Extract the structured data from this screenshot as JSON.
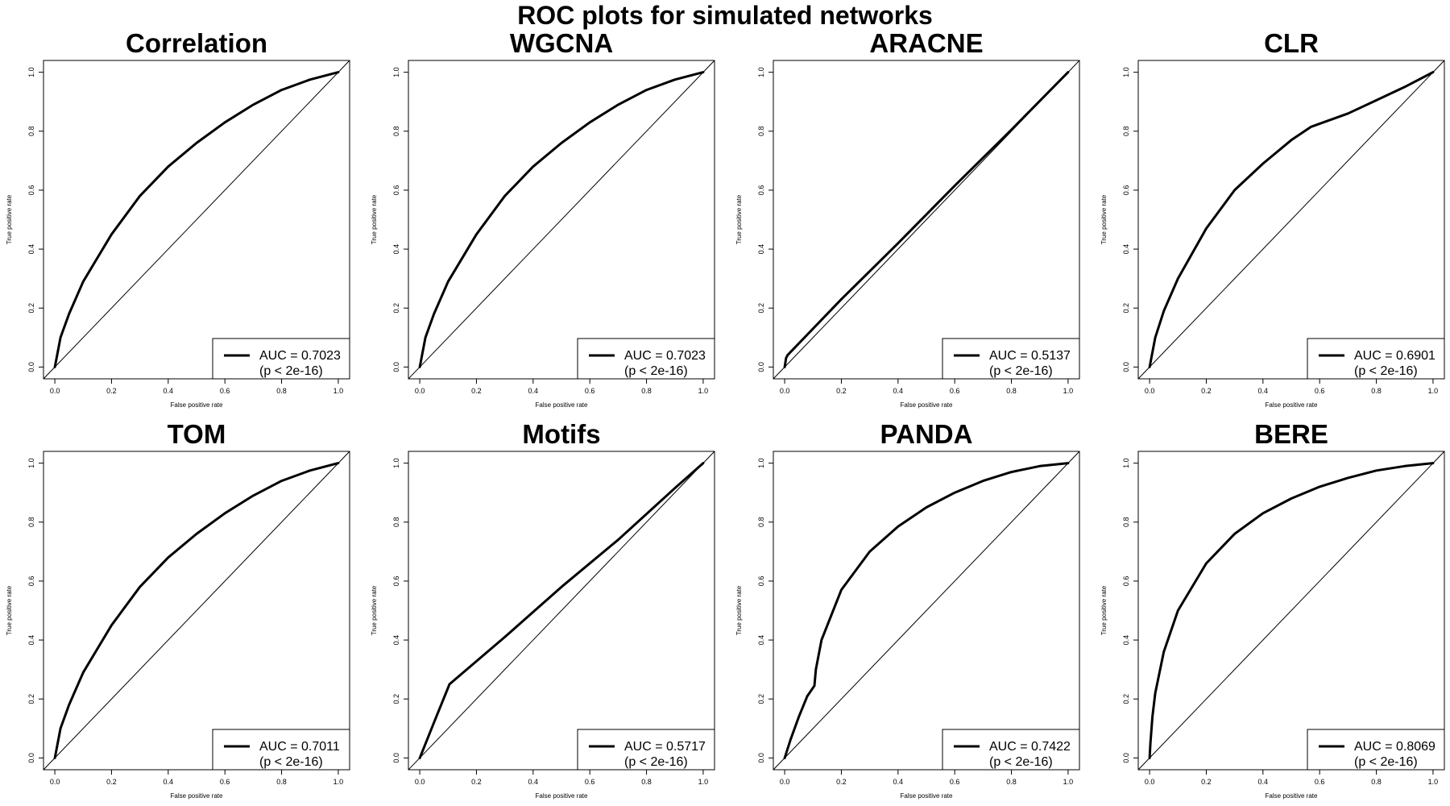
{
  "figure": {
    "title": "ROC plots for simulated networks"
  },
  "chart_data": [
    {
      "type": "line",
      "title": "Correlation",
      "xlabel": "False positive rate",
      "ylabel": "True positive rate",
      "xlim": [
        0,
        1
      ],
      "ylim": [
        0,
        1
      ],
      "xticks": [
        "0.0",
        "0.2",
        "0.4",
        "0.6",
        "0.8",
        "1.0"
      ],
      "yticks": [
        "0.0",
        "0.2",
        "0.4",
        "0.6",
        "0.8",
        "1.0"
      ],
      "grid": false,
      "legend_position": "bottom-right",
      "legend": [
        "AUC = 0.7023",
        "(p < 2e-16)"
      ],
      "auc": 0.7023,
      "x": [
        0,
        0.02,
        0.05,
        0.1,
        0.2,
        0.3,
        0.4,
        0.5,
        0.6,
        0.7,
        0.8,
        0.9,
        1.0
      ],
      "y": [
        0,
        0.1,
        0.18,
        0.29,
        0.45,
        0.58,
        0.68,
        0.76,
        0.83,
        0.89,
        0.94,
        0.975,
        1.0
      ]
    },
    {
      "type": "line",
      "title": "WGCNA",
      "xlabel": "False positive rate",
      "ylabel": "True positive rate",
      "xlim": [
        0,
        1
      ],
      "ylim": [
        0,
        1
      ],
      "xticks": [
        "0.0",
        "0.2",
        "0.4",
        "0.6",
        "0.8",
        "1.0"
      ],
      "yticks": [
        "0.0",
        "0.2",
        "0.4",
        "0.6",
        "0.8",
        "1.0"
      ],
      "grid": false,
      "legend_position": "bottom-right",
      "legend": [
        "AUC = 0.7023",
        "(p < 2e-16)"
      ],
      "auc": 0.7023,
      "x": [
        0,
        0.02,
        0.05,
        0.1,
        0.2,
        0.3,
        0.4,
        0.5,
        0.6,
        0.7,
        0.8,
        0.9,
        1.0
      ],
      "y": [
        0,
        0.1,
        0.18,
        0.29,
        0.45,
        0.58,
        0.68,
        0.76,
        0.83,
        0.89,
        0.94,
        0.975,
        1.0
      ]
    },
    {
      "type": "line",
      "title": "ARACNE",
      "xlabel": "False positive rate",
      "ylabel": "True positive rate",
      "xlim": [
        0,
        1
      ],
      "ylim": [
        0,
        1
      ],
      "xticks": [
        "0.0",
        "0.2",
        "0.4",
        "0.6",
        "0.8",
        "1.0"
      ],
      "yticks": [
        "0.0",
        "0.2",
        "0.4",
        "0.6",
        "0.8",
        "1.0"
      ],
      "grid": false,
      "legend_position": "bottom-right",
      "legend": [
        "AUC = 0.5137",
        "(p < 2e-16)"
      ],
      "auc": 0.5137,
      "x": [
        0,
        0.005,
        0.01,
        0.2,
        0.4,
        0.6,
        0.8,
        1.0
      ],
      "y": [
        0,
        0.03,
        0.04,
        0.23,
        0.42,
        0.615,
        0.805,
        1.0
      ]
    },
    {
      "type": "line",
      "title": "CLR",
      "xlabel": "False positive rate",
      "ylabel": "True positive rate",
      "xlim": [
        0,
        1
      ],
      "ylim": [
        0,
        1
      ],
      "xticks": [
        "0.0",
        "0.2",
        "0.4",
        "0.6",
        "0.8",
        "1.0"
      ],
      "yticks": [
        "0.0",
        "0.2",
        "0.4",
        "0.6",
        "0.8",
        "1.0"
      ],
      "grid": false,
      "legend_position": "bottom-right",
      "legend": [
        "AUC = 0.6901",
        "(p < 2e-16)"
      ],
      "auc": 0.6901,
      "x": [
        0,
        0.02,
        0.05,
        0.1,
        0.2,
        0.3,
        0.4,
        0.5,
        0.57,
        0.7,
        0.8,
        0.9,
        1.0
      ],
      "y": [
        0,
        0.1,
        0.19,
        0.3,
        0.47,
        0.6,
        0.69,
        0.77,
        0.815,
        0.86,
        0.905,
        0.95,
        1.0
      ]
    },
    {
      "type": "line",
      "title": "TOM",
      "xlabel": "False positive rate",
      "ylabel": "True positive rate",
      "xlim": [
        0,
        1
      ],
      "ylim": [
        0,
        1
      ],
      "xticks": [
        "0.0",
        "0.2",
        "0.4",
        "0.6",
        "0.8",
        "1.0"
      ],
      "yticks": [
        "0.0",
        "0.2",
        "0.4",
        "0.6",
        "0.8",
        "1.0"
      ],
      "grid": false,
      "legend_position": "bottom-right",
      "legend": [
        "AUC = 0.7011",
        "(p < 2e-16)"
      ],
      "auc": 0.7011,
      "x": [
        0,
        0.02,
        0.05,
        0.1,
        0.2,
        0.3,
        0.4,
        0.5,
        0.6,
        0.7,
        0.8,
        0.9,
        1.0
      ],
      "y": [
        0,
        0.1,
        0.18,
        0.29,
        0.45,
        0.58,
        0.68,
        0.76,
        0.83,
        0.89,
        0.94,
        0.975,
        1.0
      ]
    },
    {
      "type": "line",
      "title": "Motifs",
      "xlabel": "False positive rate",
      "ylabel": "True positive rate",
      "xlim": [
        0,
        1
      ],
      "ylim": [
        0,
        1
      ],
      "xticks": [
        "0.0",
        "0.2",
        "0.4",
        "0.6",
        "0.8",
        "1.0"
      ],
      "yticks": [
        "0.0",
        "0.2",
        "0.4",
        "0.6",
        "0.8",
        "1.0"
      ],
      "grid": false,
      "legend_position": "bottom-right",
      "legend": [
        "AUC = 0.5717",
        "(p < 2e-16)"
      ],
      "auc": 0.5717,
      "x": [
        0,
        0.05,
        0.105,
        0.3,
        0.5,
        0.7,
        0.9,
        1.0
      ],
      "y": [
        0,
        0.12,
        0.25,
        0.41,
        0.58,
        0.74,
        0.915,
        1.0
      ]
    },
    {
      "type": "line",
      "title": "PANDA",
      "xlabel": "False positive rate",
      "ylabel": "True positive rate",
      "xlim": [
        0,
        1
      ],
      "ylim": [
        0,
        1
      ],
      "xticks": [
        "0.0",
        "0.2",
        "0.4",
        "0.6",
        "0.8",
        "1.0"
      ],
      "yticks": [
        "0.0",
        "0.2",
        "0.4",
        "0.6",
        "0.8",
        "1.0"
      ],
      "grid": false,
      "legend_position": "bottom-right",
      "legend": [
        "AUC = 0.7422",
        "(p < 2e-16)"
      ],
      "auc": 0.7422,
      "x": [
        0,
        0.02,
        0.05,
        0.08,
        0.105,
        0.11,
        0.13,
        0.2,
        0.3,
        0.4,
        0.5,
        0.6,
        0.7,
        0.8,
        0.9,
        1.0
      ],
      "y": [
        0,
        0.06,
        0.14,
        0.21,
        0.245,
        0.3,
        0.4,
        0.57,
        0.7,
        0.785,
        0.85,
        0.9,
        0.94,
        0.97,
        0.99,
        1.0
      ]
    },
    {
      "type": "line",
      "title": "BERE",
      "xlabel": "False positive rate",
      "ylabel": "True positive rate",
      "xlim": [
        0,
        1
      ],
      "ylim": [
        0,
        1
      ],
      "xticks": [
        "0.0",
        "0.2",
        "0.4",
        "0.6",
        "0.8",
        "1.0"
      ],
      "yticks": [
        "0.0",
        "0.2",
        "0.4",
        "0.6",
        "0.8",
        "1.0"
      ],
      "grid": false,
      "legend_position": "bottom-right",
      "legend": [
        "AUC = 0.8069",
        "(p < 2e-16)"
      ],
      "auc": 0.8069,
      "x": [
        0,
        0.003,
        0.01,
        0.02,
        0.05,
        0.1,
        0.2,
        0.3,
        0.4,
        0.5,
        0.6,
        0.7,
        0.8,
        0.9,
        1.0
      ],
      "y": [
        0,
        0.05,
        0.14,
        0.22,
        0.36,
        0.5,
        0.66,
        0.76,
        0.83,
        0.88,
        0.92,
        0.95,
        0.975,
        0.99,
        1.0
      ]
    }
  ]
}
